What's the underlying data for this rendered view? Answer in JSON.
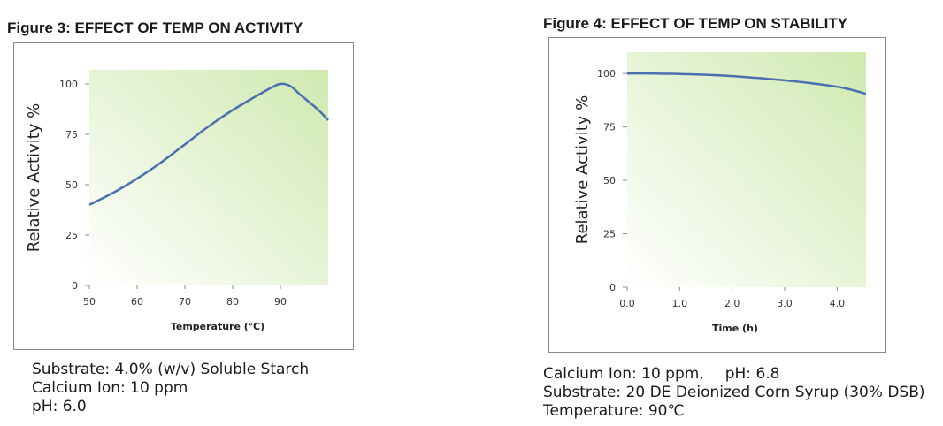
{
  "chart_data": [
    {
      "type": "line",
      "title": "Figure 3: EFFECT OF TEMP ON ACTIVITY",
      "xlabel": "Temperature (℃)",
      "ylabel": "Relative Activity %",
      "xlim": [
        50,
        100
      ],
      "ylim": [
        0,
        107
      ],
      "x_ticks": [
        50,
        60,
        70,
        80,
        90
      ],
      "y_ticks": [
        0,
        25,
        50,
        75,
        100
      ],
      "grid": false,
      "series": [
        {
          "x": [
            50,
            55,
            60,
            65,
            70,
            75,
            80,
            85,
            88,
            90,
            92,
            94,
            96,
            98,
            100
          ],
          "values": [
            40,
            46,
            53,
            61,
            70,
            79,
            87,
            94,
            98,
            100,
            99,
            95,
            91,
            87,
            82
          ]
        }
      ]
    },
    {
      "type": "line",
      "title": "Figure 4: EFFECT OF TEMP ON STABILITY",
      "xlabel": "Time (h)",
      "ylabel": "Relative Activity %",
      "xlim": [
        0,
        4.55
      ],
      "ylim": [
        0,
        110
      ],
      "x_ticks": [
        "0.0",
        "1.0",
        "2.0",
        "3.0",
        "4.0"
      ],
      "y_ticks": [
        0,
        25,
        50,
        75,
        100
      ],
      "grid": false,
      "series": [
        {
          "x": [
            0,
            0.5,
            1,
            1.5,
            2,
            2.5,
            3,
            3.5,
            4,
            4.25,
            4.55
          ],
          "values": [
            100,
            100,
            99.8,
            99.4,
            98.8,
            97.9,
            96.8,
            95.5,
            93.8,
            92.5,
            90.5
          ]
        }
      ]
    }
  ],
  "captions": {
    "fig3": [
      "Substrate: 4.0% (w/v) Soluble Starch",
      "Calcium Ion: 10 ppm",
      "pH: 6.0"
    ],
    "fig4": {
      "line1a": "Calcium Ion: 10 ppm,",
      "line1b": "pH: 6.8",
      "line2": "Substrate: 20 DE Deionized Corn Syrup (30% DSB)",
      "line3": "Temperature: 90℃"
    }
  },
  "colors": {
    "line": "#4a6fb0",
    "plot_bg_light": "#ffffff",
    "plot_bg_green": "#cfe9b0",
    "frame": "#8a8a8a"
  }
}
